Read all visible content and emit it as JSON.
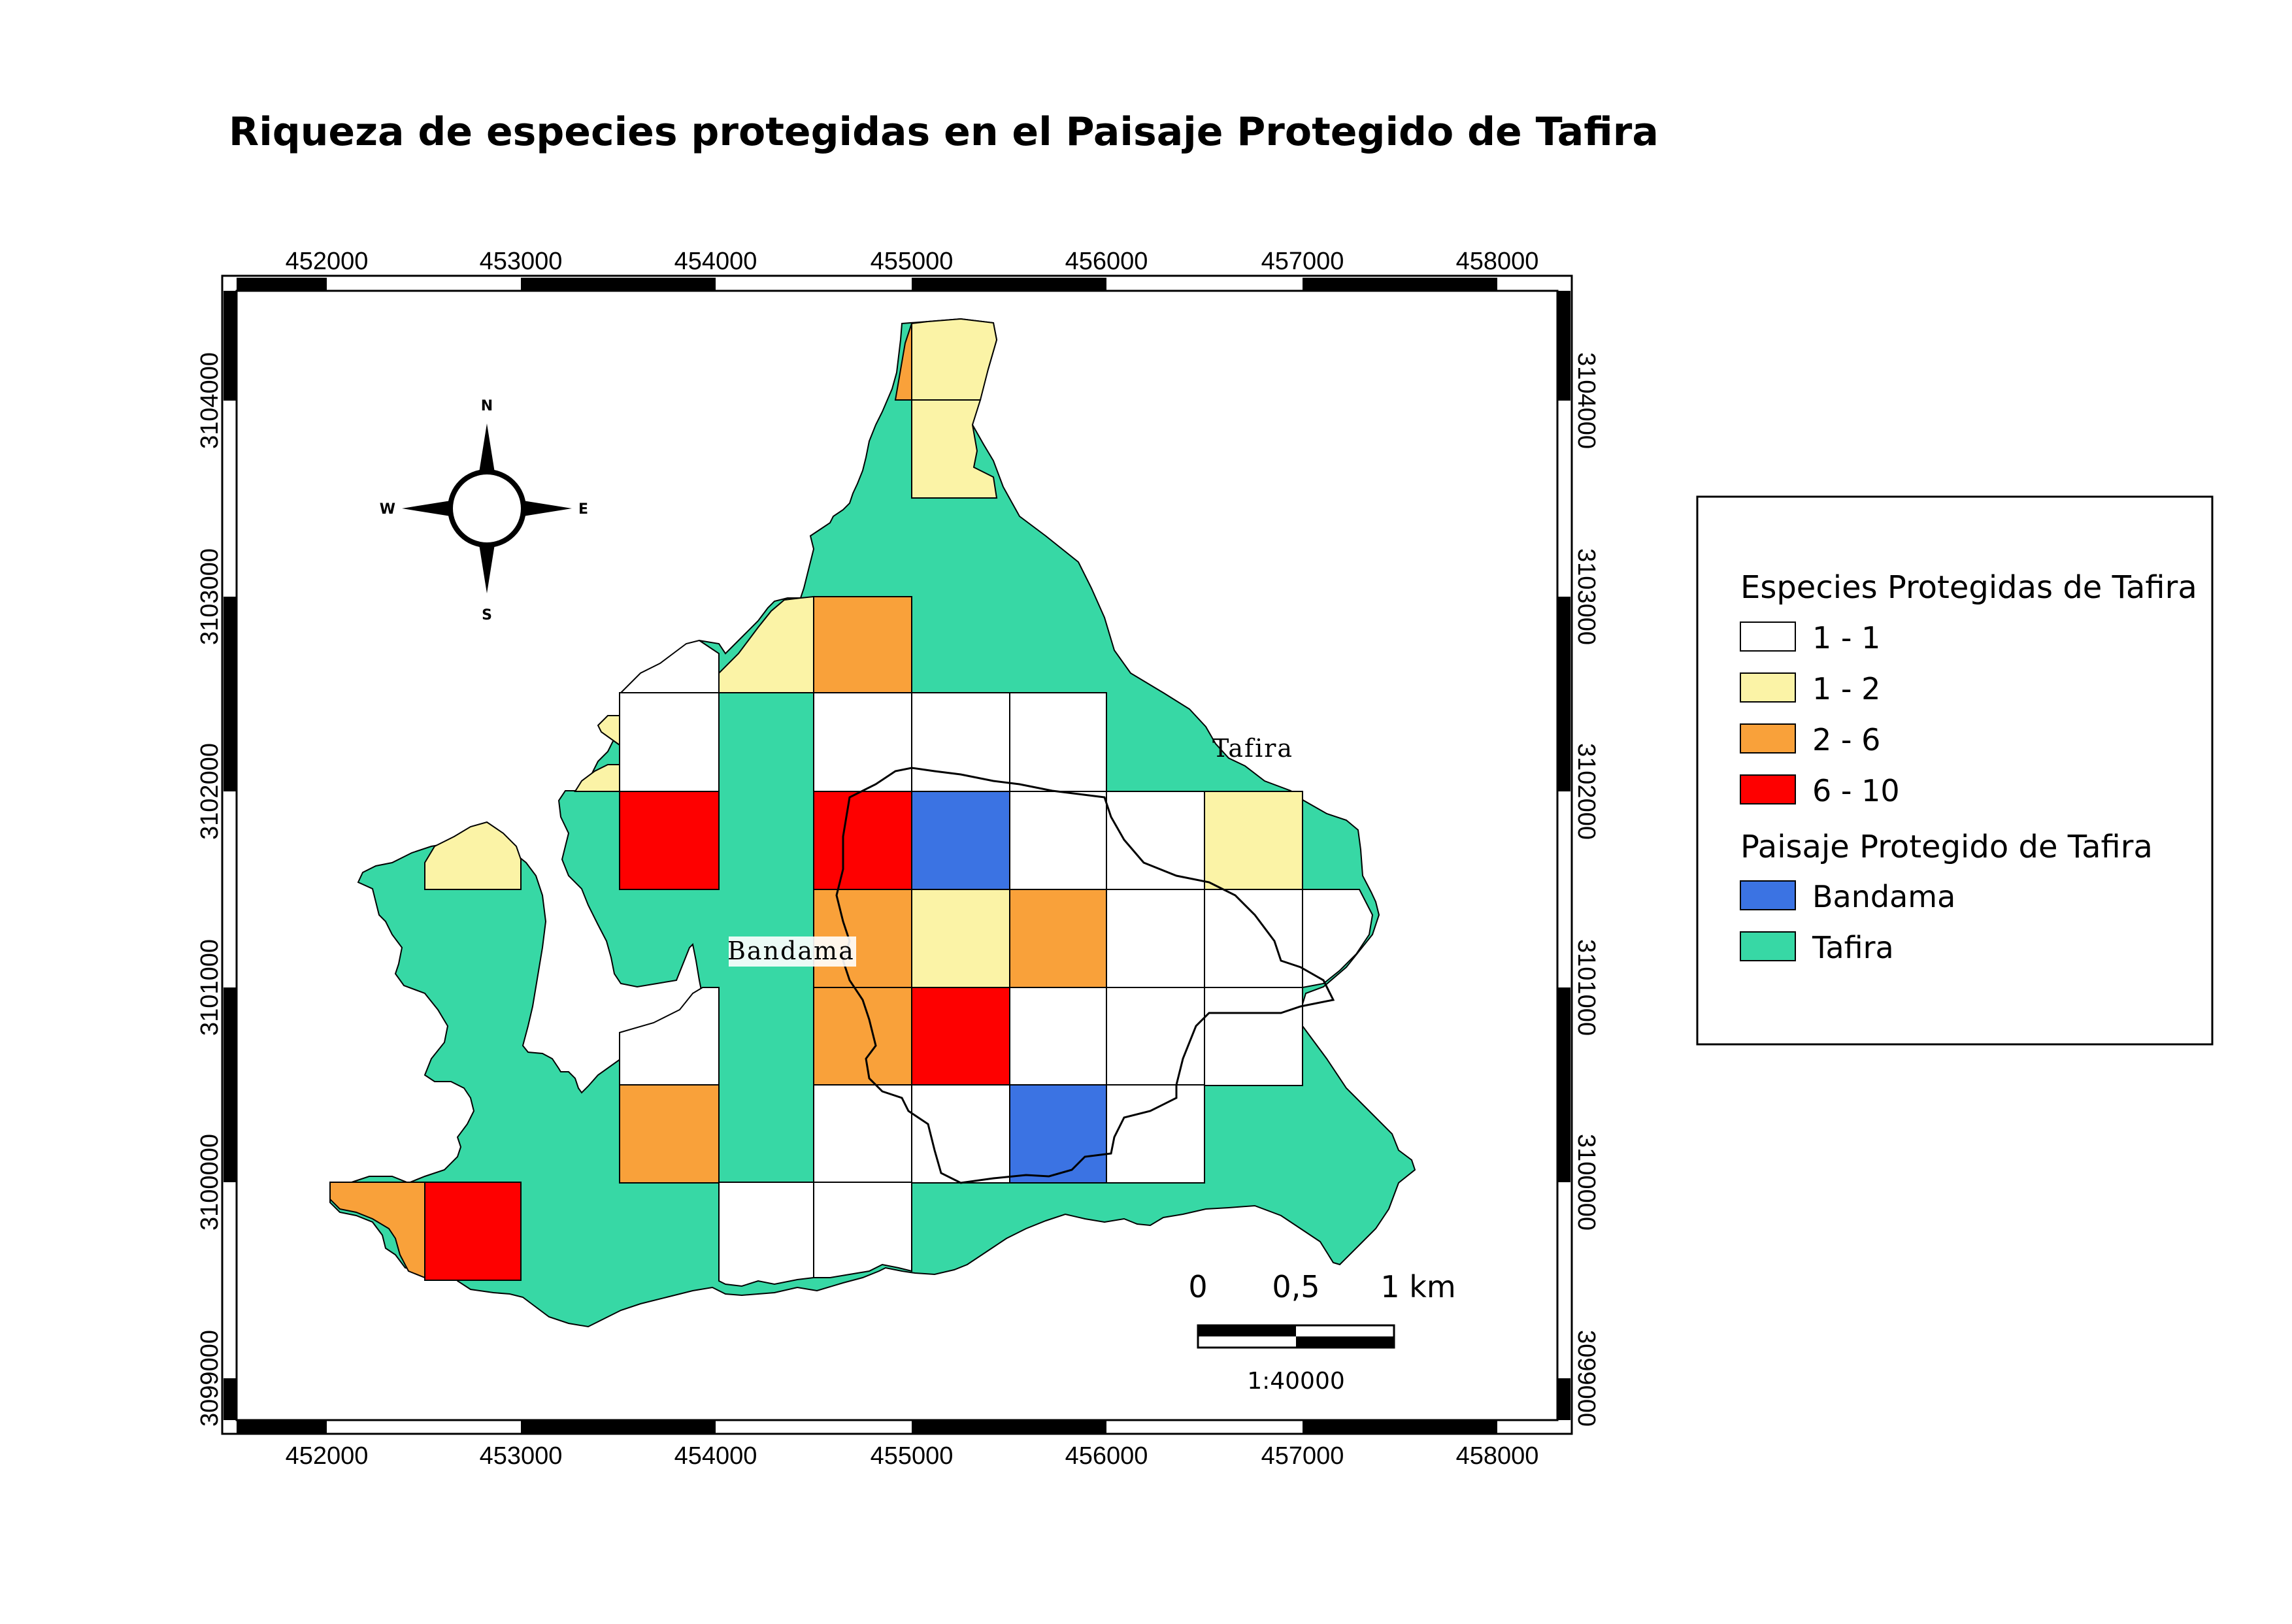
{
  "title": "Riqueza de especies protegidas  en el Paisaje Protegido de Tafira",
  "colors": {
    "tafira": "#37d8a5",
    "bandama": "#3b73e3",
    "class_1_1": "#ffffff",
    "class_1_2": "#fbf3a6",
    "class_2_6": "#f9a13a",
    "class_6_10": "#fe0000"
  },
  "axes": {
    "x_ticks": [
      "452000",
      "453000",
      "454000",
      "455000",
      "456000",
      "457000",
      "458000"
    ],
    "y_ticks": [
      "3104000",
      "3103000",
      "3102000",
      "3101000",
      "3100000",
      "3099000"
    ]
  },
  "compass": {
    "n": "N",
    "s": "S",
    "e": "E",
    "w": "W"
  },
  "places": {
    "tafira": "Tafira",
    "bandama": "Bandama"
  },
  "scale_bar": {
    "label_0": "0",
    "label_mid": "0,5",
    "label_end": "1 km",
    "ratio": "1:40000"
  },
  "legend": {
    "title_species": "Especies Protegidas de Tafira",
    "species_items": [
      {
        "label": "1 - 1",
        "color": "#ffffff"
      },
      {
        "label": "1 - 2",
        "color": "#fbf3a6"
      },
      {
        "label": "2 - 6",
        "color": "#f9a13a"
      },
      {
        "label": "6 - 10",
        "color": "#fe0000"
      }
    ],
    "title_landscape": "Paisaje Protegido de Tafira",
    "landscape_items": [
      {
        "label": "Bandama",
        "color": "#3b73e3"
      },
      {
        "label": "Tafira",
        "color": "#37d8a5"
      }
    ]
  }
}
